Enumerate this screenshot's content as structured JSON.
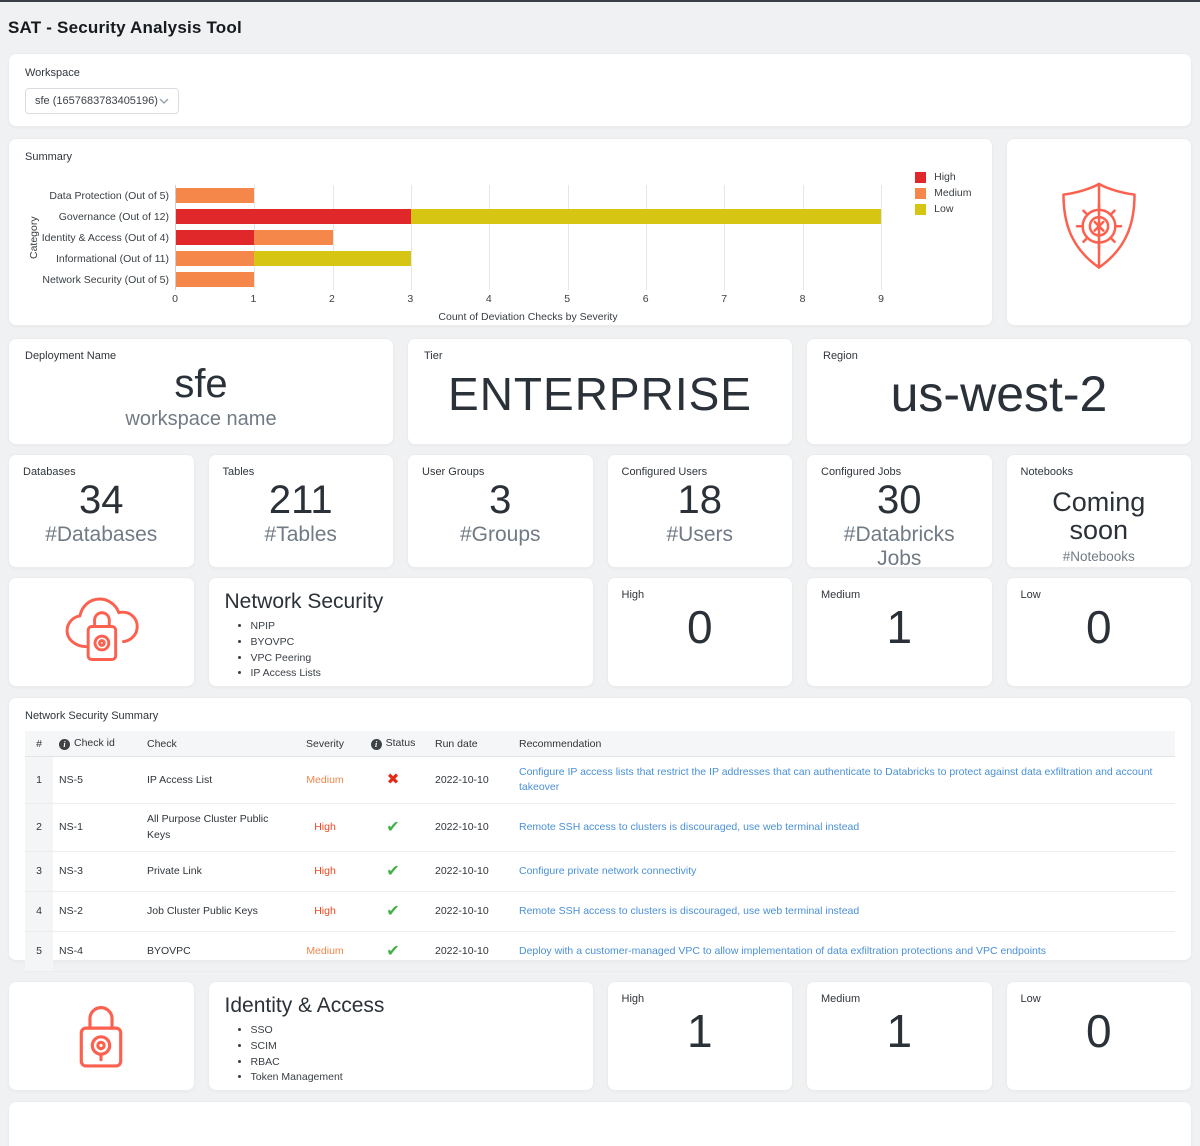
{
  "header": {
    "title": "SAT - Security Analysis Tool"
  },
  "workspace": {
    "label": "Workspace",
    "selected": "sfe (1657683783405196)"
  },
  "summary_card": {
    "title": "Summary"
  },
  "chart_data": {
    "type": "bar",
    "orientation": "horizontal",
    "title": "Summary",
    "categories": [
      "Data Protection (Out of 5)",
      "Governance (Out of 12)",
      "Identity & Access (Out of 4)",
      "Informational (Out of 11)",
      "Network Security (Out of 5)"
    ],
    "series": [
      {
        "name": "High",
        "color": "#e0282a",
        "values": [
          0,
          3,
          1,
          0,
          0
        ]
      },
      {
        "name": "Medium",
        "color": "#f5874b",
        "values": [
          1,
          0,
          1,
          1,
          1
        ]
      },
      {
        "name": "Low",
        "color": "#d6c613",
        "values": [
          0,
          6,
          0,
          2,
          0
        ]
      }
    ],
    "xlabel": "Count of Deviation Checks by Severity",
    "ylabel": "Category",
    "xlim": [
      0,
      9
    ],
    "xticks": [
      0,
      1,
      2,
      3,
      4,
      5,
      6,
      7,
      8,
      9
    ],
    "grid": true,
    "legend_position": "top-right"
  },
  "info_cards": [
    {
      "label": "Deployment Name",
      "value": "sfe",
      "sub": "workspace name"
    },
    {
      "label": "Tier",
      "value": "ENTERPRISE"
    },
    {
      "label": "Region",
      "value": "us-west-2"
    }
  ],
  "stat_cards": [
    {
      "label": "Databases",
      "value": "34",
      "sub": "#Databases"
    },
    {
      "label": "Tables",
      "value": "211",
      "sub": "#Tables"
    },
    {
      "label": "User Groups",
      "value": "3",
      "sub": "#Groups"
    },
    {
      "label": "Configured Users",
      "value": "18",
      "sub": "#Users"
    },
    {
      "label": "Configured Jobs",
      "value": "30",
      "sub": "#Databricks Jobs"
    },
    {
      "label": "Notebooks",
      "value": "Coming soon",
      "sub": "#Notebooks"
    }
  ],
  "network_security": {
    "title": "Network Security",
    "items": [
      "NPIP",
      "BYOVPC",
      "VPC Peering",
      "IP Access Lists"
    ],
    "counts": [
      {
        "label": "High",
        "value": "0"
      },
      {
        "label": "Medium",
        "value": "1"
      },
      {
        "label": "Low",
        "value": "0"
      }
    ]
  },
  "summary_table": {
    "title": "Network Security Summary",
    "columns": [
      "#",
      "Check id",
      "Check",
      "Severity",
      "Status",
      "Run date",
      "Recommendation"
    ],
    "rows": [
      {
        "num": "1",
        "check_id": "NS-5",
        "check": "IP Access List",
        "severity": "Medium",
        "status": "fail",
        "run_date": "2022-10-10",
        "recommendation": "Configure IP access lists that restrict the IP addresses that can authenticate to Databricks to protect against data exfiltration and account takeover"
      },
      {
        "num": "2",
        "check_id": "NS-1",
        "check": "All Purpose Cluster Public Keys",
        "severity": "High",
        "status": "pass",
        "run_date": "2022-10-10",
        "recommendation": "Remote SSH access to clusters is discouraged, use web terminal instead"
      },
      {
        "num": "3",
        "check_id": "NS-3",
        "check": "Private Link",
        "severity": "High",
        "status": "pass",
        "run_date": "2022-10-10",
        "recommendation": "Configure private network connectivity"
      },
      {
        "num": "4",
        "check_id": "NS-2",
        "check": "Job Cluster Public Keys",
        "severity": "High",
        "status": "pass",
        "run_date": "2022-10-10",
        "recommendation": "Remote SSH access to clusters is discouraged, use web terminal instead"
      },
      {
        "num": "5",
        "check_id": "NS-4",
        "check": "BYOVPC",
        "severity": "Medium",
        "status": "pass",
        "run_date": "2022-10-10",
        "recommendation": "Deploy with a customer-managed VPC to allow implementation of data exfiltration protections and VPC endpoints"
      }
    ]
  },
  "identity_access": {
    "title": "Identity & Access",
    "items": [
      "SSO",
      "SCIM",
      "RBAC",
      "Token Management"
    ],
    "counts": [
      {
        "label": "High",
        "value": "1"
      },
      {
        "label": "Medium",
        "value": "1"
      },
      {
        "label": "Low",
        "value": "0"
      }
    ]
  },
  "icons": {
    "info": "i",
    "pass": "✔",
    "fail": "✖"
  },
  "colors": {
    "accent_coral": "#fc604e",
    "severity_high": "#ee4723",
    "severity_medium": "#f0864a",
    "link_blue": "#4a90d8",
    "check_green": "#43b14b",
    "cross_red": "#e32b18",
    "page_background": "#eff1f2"
  }
}
